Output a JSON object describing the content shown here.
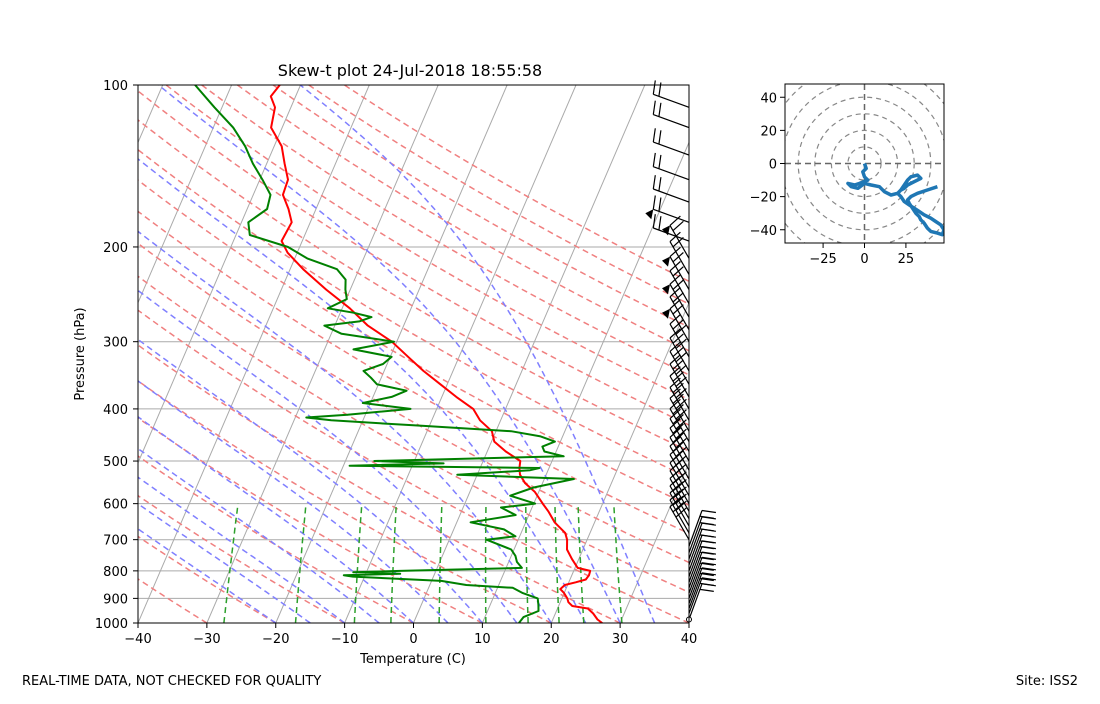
{
  "chart_data": [
    {
      "type": "skew-t",
      "title": "Skew-t plot 24-Jul-2018 18:55:58",
      "xlabel": "Temperature (C)",
      "ylabel": "Pressure (hPa)",
      "xlim": [
        -40,
        40
      ],
      "ylim": [
        1000,
        100
      ],
      "y_scale": "log",
      "x_ticks": [
        -40,
        -30,
        -20,
        -10,
        0,
        10,
        20,
        30,
        40
      ],
      "y_ticks": [
        1000,
        900,
        800,
        700,
        600,
        500,
        400,
        300,
        200,
        100
      ],
      "grid": true,
      "skew_isotherms": "gray",
      "dry_adiabats_color": "#f08080",
      "moist_adiabats_color": "#8080ff",
      "mixing_ratio_lines_color": "#2ca02c",
      "series": [
        {
          "color": "#ff0000",
          "pressure": [
            1000,
            985,
            960,
            940,
            930,
            915,
            900,
            880,
            865,
            850,
            840,
            830,
            815,
            800,
            790,
            760,
            730,
            700,
            680,
            650,
            620,
            600,
            570,
            550,
            530,
            515,
            500,
            480,
            460,
            440,
            420,
            400,
            380,
            360,
            340,
            320,
            300,
            280,
            260,
            240,
            220,
            205,
            195,
            180,
            170,
            160,
            150,
            140,
            130,
            120,
            110,
            105,
            100
          ],
          "values": [
            27.4,
            26.5,
            25.5,
            24.4,
            22.0,
            21.2,
            20.8,
            20.0,
            19.2,
            19.6,
            21.0,
            22.3,
            22.5,
            22.4,
            20.4,
            19.0,
            17.7,
            17.1,
            16.4,
            14.2,
            12.6,
            11.3,
            9.4,
            7.5,
            6.2,
            5.7,
            5.4,
            2.7,
            0.4,
            -0.6,
            -3.0,
            -4.7,
            -7.9,
            -11.0,
            -14.3,
            -17.4,
            -20.7,
            -25.2,
            -28.9,
            -33.5,
            -38.1,
            -41.4,
            -43.0,
            -42.7,
            -44.0,
            -45.7,
            -45.9,
            -47.4,
            -48.9,
            -51.6,
            -52.3,
            -53.6,
            -53.0
          ]
        },
        {
          "color": "#008000",
          "pressure": [
            1000,
            975,
            950,
            925,
            900,
            880,
            860,
            850,
            835,
            820,
            815,
            810,
            805,
            800,
            790,
            770,
            750,
            730,
            700,
            690,
            670,
            650,
            630,
            610,
            600,
            580,
            560,
            540,
            530,
            520,
            515,
            510,
            505,
            500,
            490,
            480,
            470,
            460,
            450,
            440,
            430,
            420,
            415,
            410,
            400,
            390,
            380,
            370,
            360,
            350,
            340,
            330,
            320,
            310,
            300,
            290,
            280,
            275,
            270,
            265,
            260,
            250,
            240,
            230,
            220,
            210,
            200,
            190,
            180,
            170,
            160,
            150,
            140,
            130,
            120,
            110,
            100
          ],
          "values": [
            15.3,
            15.6,
            17.4,
            17.0,
            16.5,
            14.0,
            12.2,
            5.3,
            1.4,
            -11.7,
            -13.1,
            -5.0,
            -11.9,
            -5.2,
            12.3,
            11.2,
            10.6,
            9.6,
            5.4,
            9.4,
            7.3,
            2.0,
            8.1,
            5.5,
            10.2,
            6.1,
            9.0,
            14.3,
            -2.9,
            7.4,
            8.6,
            -19.1,
            -5.6,
            -15.8,
            11.4,
            8.3,
            7.7,
            9.2,
            6.8,
            2.2,
            -11.1,
            -24.6,
            -28.4,
            -22.6,
            -13.8,
            -21.1,
            -17.3,
            -15.5,
            -20.2,
            -21.5,
            -23.0,
            -20.6,
            -19.8,
            -25.8,
            -20.4,
            -28.5,
            -31.5,
            -26.7,
            -25.2,
            -28.1,
            -32.1,
            -29.9,
            -30.7,
            -31.3,
            -33.2,
            -38.2,
            -41.7,
            -48.0,
            -49.0,
            -47.1,
            -47.5,
            -49.6,
            -52.0,
            -54.2,
            -57.1,
            -61.1,
            -65.3
          ]
        }
      ],
      "wind_barbs": "shown on right edge at 40 C",
      "footer_left": "REAL-TIME DATA, NOT CHECKED FOR QUALITY",
      "footer_right": "Site: ISS2"
    },
    {
      "type": "line",
      "subtype": "hodograph",
      "xlim": [
        -48,
        48
      ],
      "ylim": [
        -48,
        48
      ],
      "x_ticks": [
        -25,
        0,
        25
      ],
      "y_ticks": [
        -40,
        -20,
        0,
        20,
        40
      ],
      "ring_spacing": 10,
      "grid": "dashed rings",
      "series": [
        {
          "color": "#1f77b4",
          "x": [
            0,
            1,
            -1,
            0,
            2,
            -3,
            -6,
            -10,
            -8,
            -4,
            0,
            4,
            9,
            12,
            16,
            20,
            22,
            24,
            26,
            28,
            32,
            34,
            30,
            26,
            24,
            22,
            20,
            22,
            24,
            27,
            30,
            33,
            36,
            40,
            43,
            46,
            48,
            47,
            44,
            40,
            38,
            36,
            34,
            33,
            31,
            29,
            27,
            26,
            28,
            32,
            38,
            44
          ],
          "y": [
            0,
            -3,
            -5,
            -8,
            -10,
            -12,
            -13,
            -12,
            -14,
            -15,
            -12,
            -13,
            -14,
            -17,
            -19,
            -18,
            -16,
            -13,
            -10,
            -8,
            -7,
            -9,
            -11,
            -13,
            -15,
            -16,
            -18,
            -20,
            -23,
            -25,
            -27,
            -29,
            -31,
            -33,
            -35,
            -37,
            -40,
            -43,
            -42,
            -41,
            -39,
            -36,
            -34,
            -32,
            -30,
            -27,
            -24,
            -22,
            -20,
            -18,
            -16,
            -14
          ]
        }
      ]
    }
  ]
}
